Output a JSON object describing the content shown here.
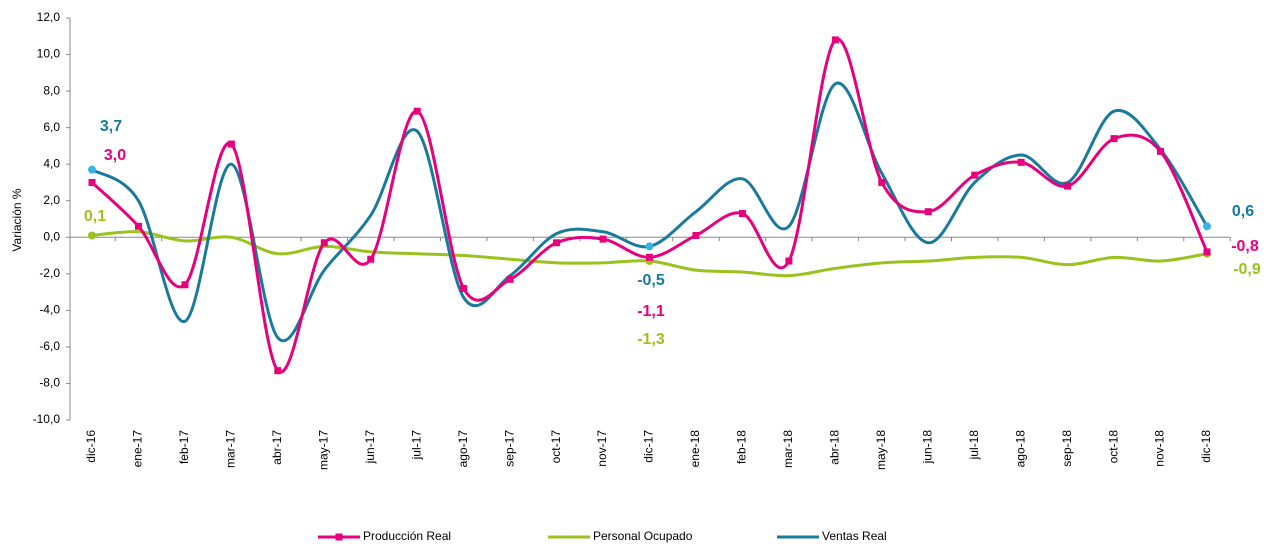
{
  "chart_data": {
    "type": "line",
    "y_label": "Variación %",
    "categories": [
      "dic-16",
      "ene-17",
      "feb-17",
      "mar-17",
      "abr-17",
      "may-17",
      "jun-17",
      "jul-17",
      "ago-17",
      "sep-17",
      "oct-17",
      "nov-17",
      "dic-17",
      "ene-18",
      "feb-18",
      "mar-18",
      "abr-18",
      "may-18",
      "jun-18",
      "jul-18",
      "ago-18",
      "sep-18",
      "oct-18",
      "nov-18",
      "dic-18"
    ],
    "ylim": [
      -10,
      12
    ],
    "yticks": [
      {
        "value": 12,
        "label": "12,0"
      },
      {
        "value": 10,
        "label": "10,0"
      },
      {
        "value": 8,
        "label": "8,0"
      },
      {
        "value": 6,
        "label": "6,0"
      },
      {
        "value": 4,
        "label": "4,0"
      },
      {
        "value": 2,
        "label": "2,0"
      },
      {
        "value": 0,
        "label": "0,0"
      },
      {
        "value": -2,
        "label": "-2,0"
      },
      {
        "value": -4,
        "label": "-4,0"
      },
      {
        "value": -6,
        "label": "-6,0"
      },
      {
        "value": -8,
        "label": "-8,0"
      },
      {
        "value": -10,
        "label": "-10,0"
      }
    ],
    "series": [
      {
        "name": "Producción Real",
        "color": "#e6007e",
        "marker": "square",
        "values": [
          3.0,
          0.6,
          -2.6,
          5.1,
          -7.3,
          -0.3,
          -1.2,
          6.9,
          -2.8,
          -2.3,
          -0.3,
          -0.1,
          -1.1,
          0.1,
          1.3,
          -1.3,
          10.8,
          3.0,
          1.4,
          3.4,
          4.1,
          2.8,
          5.4,
          4.7,
          -0.8
        ],
        "value_labels": [
          "3,0",
          null,
          null,
          null,
          null,
          null,
          null,
          null,
          null,
          null,
          null,
          null,
          "-1,1",
          null,
          null,
          null,
          null,
          null,
          null,
          null,
          null,
          null,
          null,
          null,
          "-0,8"
        ]
      },
      {
        "name": "Personal Ocupado",
        "color": "#99c21c",
        "values": [
          0.1,
          0.3,
          -0.2,
          0.0,
          -0.9,
          -0.5,
          -0.8,
          -0.9,
          -1.0,
          -1.2,
          -1.4,
          -1.4,
          -1.3,
          -1.8,
          -1.9,
          -2.1,
          -1.7,
          -1.4,
          -1.3,
          -1.1,
          -1.1,
          -1.5,
          -1.1,
          -1.3,
          -0.9
        ],
        "value_labels": [
          "0,1",
          null,
          null,
          null,
          null,
          null,
          null,
          null,
          null,
          null,
          null,
          null,
          "-1,3",
          null,
          null,
          null,
          null,
          null,
          null,
          null,
          null,
          null,
          null,
          null,
          "-0,9"
        ]
      },
      {
        "name": "Ventas Real",
        "color": "#1a7a9c",
        "values": [
          3.7,
          2.0,
          -4.6,
          4.0,
          -5.5,
          -1.8,
          1.2,
          5.8,
          -3.3,
          -2.1,
          0.2,
          0.3,
          -0.5,
          1.4,
          3.2,
          0.6,
          8.4,
          3.5,
          -0.3,
          3.0,
          4.5,
          3.0,
          6.9,
          4.8,
          0.6
        ],
        "value_labels": [
          "3,7",
          null,
          null,
          null,
          null,
          null,
          null,
          null,
          null,
          null,
          null,
          null,
          "-0,5",
          null,
          null,
          null,
          null,
          null,
          null,
          null,
          null,
          null,
          null,
          null,
          "0,6"
        ]
      }
    ]
  }
}
